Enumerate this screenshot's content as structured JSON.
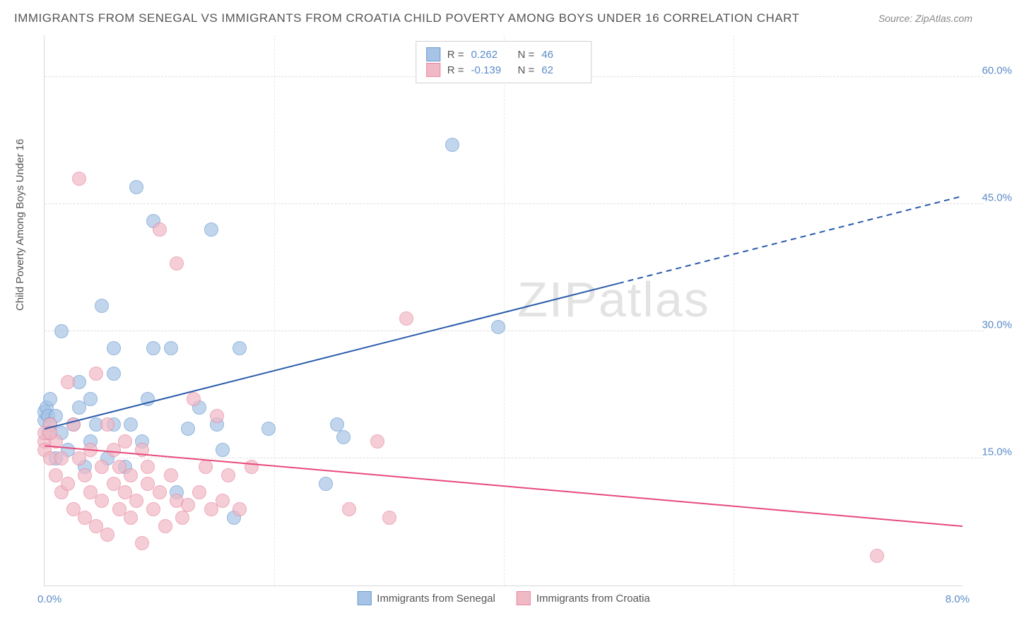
{
  "title": "IMMIGRANTS FROM SENEGAL VS IMMIGRANTS FROM CROATIA CHILD POVERTY AMONG BOYS UNDER 16 CORRELATION CHART",
  "source": "Source: ZipAtlas.com",
  "ylabel": "Child Poverty Among Boys Under 16",
  "watermark": "ZIPatlas",
  "chart": {
    "type": "scatter",
    "xlim": [
      0,
      8
    ],
    "ylim": [
      0,
      65
    ],
    "x_ticks": [
      {
        "v": 0,
        "label": "0.0%",
        "pos": "left"
      },
      {
        "v": 8,
        "label": "8.0%",
        "pos": "right"
      }
    ],
    "y_ticks": [
      {
        "v": 15,
        "label": "15.0%"
      },
      {
        "v": 30,
        "label": "30.0%"
      },
      {
        "v": 45,
        "label": "45.0%"
      },
      {
        "v": 60,
        "label": "60.0%"
      }
    ],
    "v_gridlines": [
      2.0,
      4.0,
      6.0
    ],
    "background_color": "#ffffff",
    "grid_color": "#dedede",
    "point_radius": 10,
    "point_fill_opacity": 0.35,
    "series": [
      {
        "name": "Immigrants from Senegal",
        "color_fill": "#a7c4e6",
        "color_stroke": "#6a9bd1",
        "trend_color": "#2a5caa",
        "trend_width": 2,
        "trend_dash_after_x": 5.0,
        "trend": {
          "x0": 0,
          "y0": 18.5,
          "x1": 8,
          "y1": 46
        },
        "R": "0.262",
        "N": "46",
        "points": [
          [
            0.0,
            19.5
          ],
          [
            0.0,
            20.5
          ],
          [
            0.02,
            21
          ],
          [
            0.03,
            18
          ],
          [
            0.03,
            20
          ],
          [
            0.05,
            22
          ],
          [
            0.1,
            15
          ],
          [
            0.1,
            20
          ],
          [
            0.15,
            30
          ],
          [
            0.15,
            18
          ],
          [
            0.2,
            16
          ],
          [
            0.25,
            19
          ],
          [
            0.3,
            21
          ],
          [
            0.3,
            24
          ],
          [
            0.35,
            14
          ],
          [
            0.4,
            17
          ],
          [
            0.4,
            22
          ],
          [
            0.45,
            19
          ],
          [
            0.5,
            33
          ],
          [
            0.55,
            15
          ],
          [
            0.6,
            19
          ],
          [
            0.6,
            28
          ],
          [
            0.6,
            25
          ],
          [
            0.7,
            14
          ],
          [
            0.75,
            19
          ],
          [
            0.8,
            47
          ],
          [
            0.85,
            17
          ],
          [
            0.9,
            22
          ],
          [
            0.95,
            43
          ],
          [
            0.95,
            28
          ],
          [
            1.1,
            28
          ],
          [
            1.15,
            11
          ],
          [
            1.25,
            18.5
          ],
          [
            1.35,
            21
          ],
          [
            1.45,
            42
          ],
          [
            1.5,
            19
          ],
          [
            1.55,
            16
          ],
          [
            1.65,
            8
          ],
          [
            1.7,
            28
          ],
          [
            1.95,
            18.5
          ],
          [
            2.45,
            12
          ],
          [
            2.55,
            19
          ],
          [
            2.6,
            17.5
          ],
          [
            3.55,
            52
          ],
          [
            3.95,
            30.5
          ],
          [
            0.05,
            19
          ]
        ]
      },
      {
        "name": "Immigrants from Croatia",
        "color_fill": "#f1b9c6",
        "color_stroke": "#e788a0",
        "trend_color": "#e74a7b",
        "trend_width": 2,
        "trend_dash_after_x": 10,
        "trend": {
          "x0": 0,
          "y0": 16.5,
          "x1": 8,
          "y1": 7
        },
        "R": "-0.139",
        "N": "62",
        "points": [
          [
            0.0,
            17
          ],
          [
            0.0,
            18
          ],
          [
            0.0,
            16
          ],
          [
            0.05,
            15
          ],
          [
            0.05,
            19
          ],
          [
            0.1,
            13
          ],
          [
            0.1,
            17
          ],
          [
            0.15,
            11
          ],
          [
            0.15,
            15
          ],
          [
            0.2,
            24
          ],
          [
            0.2,
            12
          ],
          [
            0.25,
            19
          ],
          [
            0.25,
            9
          ],
          [
            0.3,
            15
          ],
          [
            0.3,
            48
          ],
          [
            0.35,
            8
          ],
          [
            0.35,
            13
          ],
          [
            0.4,
            16
          ],
          [
            0.4,
            11
          ],
          [
            0.45,
            25
          ],
          [
            0.45,
            7
          ],
          [
            0.5,
            14
          ],
          [
            0.5,
            10
          ],
          [
            0.55,
            19
          ],
          [
            0.55,
            6
          ],
          [
            0.6,
            12
          ],
          [
            0.6,
            16
          ],
          [
            0.65,
            9
          ],
          [
            0.65,
            14
          ],
          [
            0.7,
            11
          ],
          [
            0.7,
            17
          ],
          [
            0.75,
            8
          ],
          [
            0.75,
            13
          ],
          [
            0.8,
            10
          ],
          [
            0.85,
            16
          ],
          [
            0.85,
            5
          ],
          [
            0.9,
            12
          ],
          [
            0.9,
            14
          ],
          [
            0.95,
            9
          ],
          [
            1.0,
            11
          ],
          [
            1.0,
            42
          ],
          [
            1.05,
            7
          ],
          [
            1.1,
            13
          ],
          [
            1.15,
            10
          ],
          [
            1.15,
            38
          ],
          [
            1.2,
            8
          ],
          [
            1.25,
            9.5
          ],
          [
            1.3,
            22
          ],
          [
            1.35,
            11
          ],
          [
            1.4,
            14
          ],
          [
            1.45,
            9
          ],
          [
            1.5,
            20
          ],
          [
            1.55,
            10
          ],
          [
            1.6,
            13
          ],
          [
            1.7,
            9
          ],
          [
            1.8,
            14
          ],
          [
            2.65,
            9
          ],
          [
            2.9,
            17
          ],
          [
            3.0,
            8
          ],
          [
            3.15,
            31.5
          ],
          [
            7.25,
            3.5
          ],
          [
            0.05,
            18
          ]
        ]
      }
    ]
  },
  "stat_legend_labels": {
    "R": "R =",
    "N": "N ="
  }
}
